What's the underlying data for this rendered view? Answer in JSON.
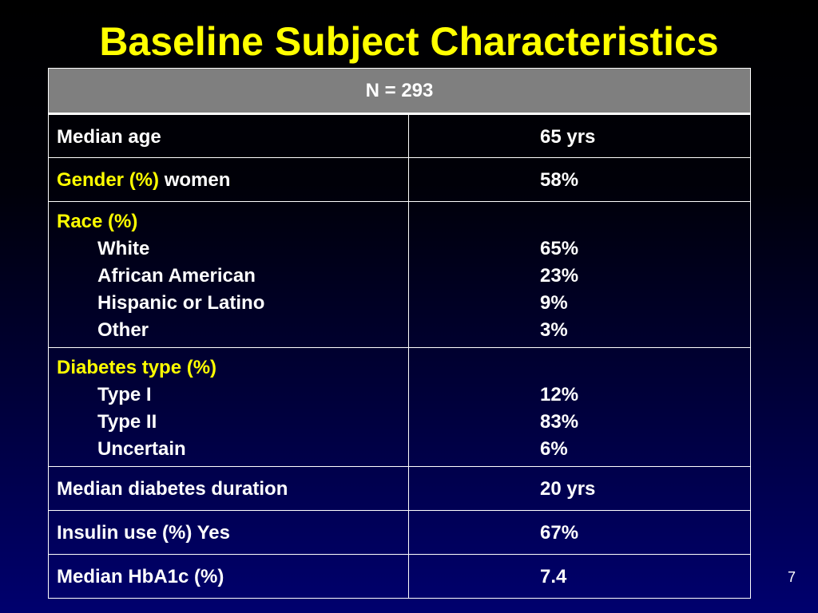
{
  "slide": {
    "title": "Baseline Subject Characteristics",
    "page_number": "7"
  },
  "table": {
    "header": "N = 293",
    "rows": [
      {
        "label": "Median age",
        "value": "65 yrs"
      },
      {
        "label": "Gender (%)",
        "label_suffix": "women",
        "value": "58%"
      },
      {
        "label": "Race (%)",
        "items": [
          {
            "label": "White",
            "value": "65%"
          },
          {
            "label": "African American",
            "value": "23%"
          },
          {
            "label": "Hispanic or Latino",
            "value": "9%"
          },
          {
            "label": "Other",
            "value": "3%"
          }
        ]
      },
      {
        "label": "Diabetes type (%)",
        "items": [
          {
            "label": "Type I",
            "value": "12%"
          },
          {
            "label": "Type II",
            "value": "83%"
          },
          {
            "label": "Uncertain",
            "value": "6%"
          }
        ]
      },
      {
        "label": "Median diabetes duration",
        "value": "20 yrs"
      },
      {
        "label": "Insulin use (%) Yes",
        "value": "67%"
      },
      {
        "label": "Median HbA1c (%)",
        "value": "7.4"
      }
    ]
  },
  "colors": {
    "title": "#ffff00",
    "label": "#ffff00",
    "value": "#ffffff",
    "header_bg": "#7f7f7f"
  }
}
